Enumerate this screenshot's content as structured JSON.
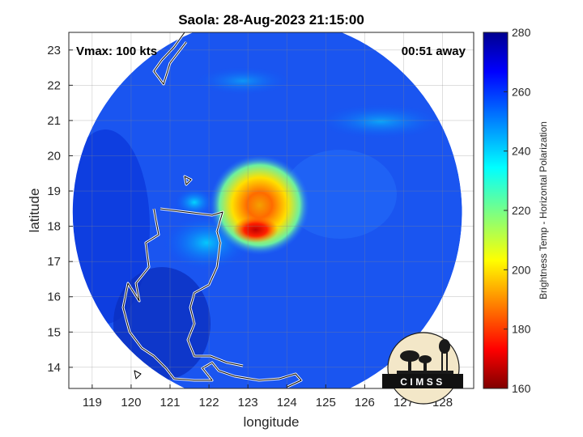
{
  "chart_data": {
    "type": "heatmap",
    "title": "Saola: 28-Aug-2023 21:15:00",
    "xlabel": "longitude",
    "ylabel": "latitude",
    "xlim": [
      118.4,
      128.8
    ],
    "ylim": [
      13.4,
      23.5
    ],
    "x_ticks": [
      "119",
      "120",
      "121",
      "122",
      "123",
      "124",
      "125",
      "126",
      "127",
      "128"
    ],
    "y_ticks": [
      "14",
      "15",
      "16",
      "17",
      "18",
      "19",
      "20",
      "21",
      "22",
      "23"
    ],
    "grid": true,
    "colorbar": {
      "label": "Brightness Temp - Horizontal Polarization",
      "range": [
        160,
        280
      ],
      "ticks": [
        "160",
        "180",
        "200",
        "220",
        "240",
        "260",
        "280"
      ],
      "colormap": [
        "#7f0000",
        "#ff0000",
        "#ffff00",
        "#00ffff",
        "#0000ff",
        "#00008f"
      ]
    },
    "annotations": {
      "vmax": "Vmax: 100 kts",
      "time_away": "00:51 away"
    },
    "storm_center": {
      "lon": 123.3,
      "lat": 18.6
    },
    "coldest_core": {
      "lon": 123.2,
      "lat": 17.9,
      "value": 175
    },
    "swath": {
      "center_lon": 123.5,
      "center_lat": 18.4,
      "radius_deg": 5.0,
      "background_value": 262
    }
  },
  "logo": {
    "text": "CIMSS"
  }
}
